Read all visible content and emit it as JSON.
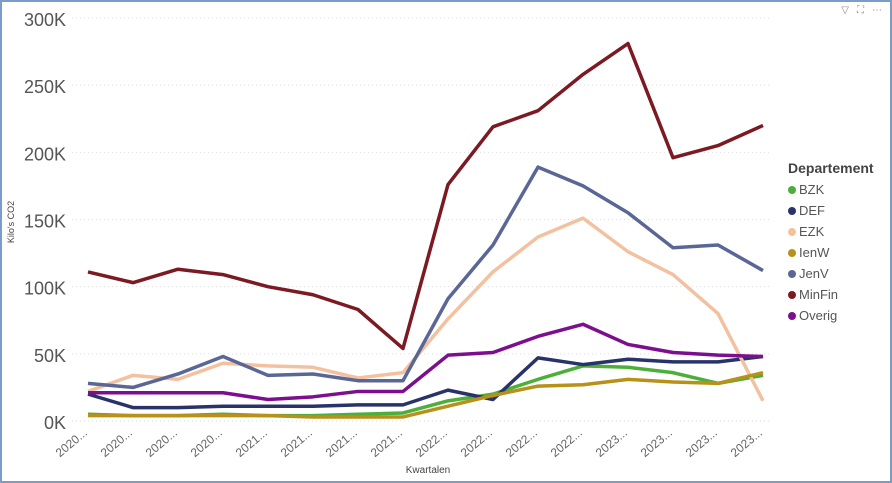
{
  "header": {
    "filter_icon": "filter-icon",
    "focus_icon": "focus-mode-icon",
    "more_icon": "more-options-icon"
  },
  "chart_data": {
    "type": "line",
    "title": "",
    "xlabel": "Kwartalen",
    "ylabel": "Kilo's CO2",
    "ylim": [
      0,
      300000
    ],
    "yticks": [
      "0K",
      "50K",
      "100K",
      "150K",
      "200K",
      "250K",
      "300K"
    ],
    "categories": [
      "2020...",
      "2020...",
      "2020...",
      "2020...",
      "2021...",
      "2021...",
      "2021...",
      "2021...",
      "2022...",
      "2022...",
      "2022...",
      "2022...",
      "2023...",
      "2023...",
      "2023...",
      "2023..."
    ],
    "legend_title": "Departement",
    "legend_position": "right",
    "grid": true,
    "series": [
      {
        "name": "BZK",
        "color": "#4caf3a",
        "values": [
          5,
          4,
          4,
          5,
          4,
          4,
          5,
          6,
          15,
          20,
          31,
          41,
          40,
          36,
          28,
          34
        ]
      },
      {
        "name": "DEF",
        "color": "#283469",
        "values": [
          20,
          10,
          10,
          11,
          11,
          11,
          12,
          12,
          23,
          16,
          47,
          42,
          46,
          44,
          44,
          48
        ]
      },
      {
        "name": "EZK",
        "color": "#f3c1a0",
        "values": [
          22,
          34,
          31,
          43,
          41,
          40,
          32,
          36,
          76,
          111,
          137,
          151,
          126,
          109,
          80,
          15
        ]
      },
      {
        "name": "IenW",
        "color": "#b8911a",
        "values": [
          4,
          4,
          4,
          4,
          4,
          3,
          3,
          3,
          11,
          19,
          26,
          27,
          31,
          29,
          28,
          36
        ]
      },
      {
        "name": "JenV",
        "color": "#5a6796",
        "values": [
          28,
          25,
          35,
          48,
          34,
          35,
          30,
          30,
          91,
          131,
          189,
          175,
          155,
          129,
          131,
          112
        ]
      },
      {
        "name": "MinFin",
        "color": "#7b1a23",
        "values": [
          111,
          103,
          113,
          109,
          100,
          94,
          83,
          54,
          176,
          219,
          231,
          258,
          281,
          196,
          205,
          220
        ]
      },
      {
        "name": "Overig",
        "color": "#7b0f8e",
        "values": [
          21,
          21,
          21,
          21,
          16,
          18,
          22,
          22,
          49,
          51,
          63,
          72,
          57,
          51,
          49,
          48
        ]
      }
    ],
    "value_unit": "thousands"
  }
}
